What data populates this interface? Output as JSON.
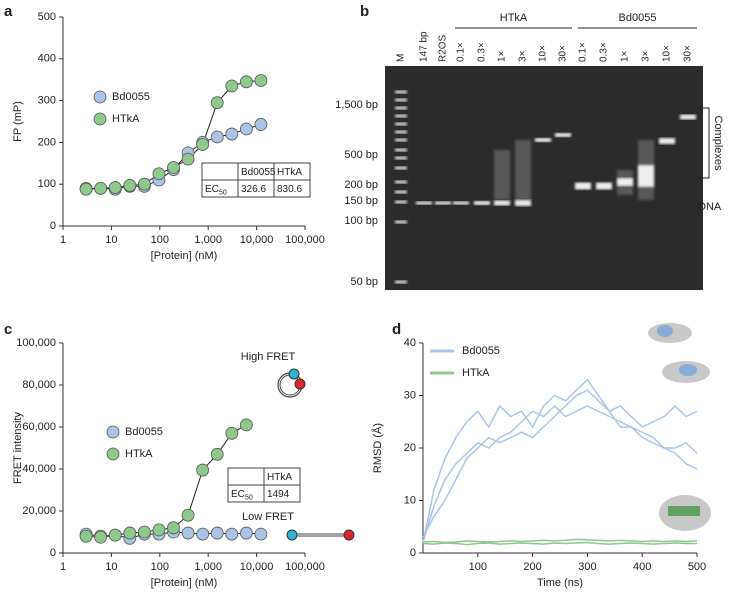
{
  "panel_labels": [
    "a",
    "b",
    "c",
    "d"
  ],
  "chart_data": [
    {
      "type": "line",
      "xlabel": "[Protein] (nM)",
      "ylabel": "FP (mP)",
      "xscale": "log",
      "markers": true,
      "fit_line": true,
      "x": [
        3,
        6,
        12,
        24,
        48,
        96,
        192,
        384,
        768,
        1536,
        3072,
        6144,
        12288
      ],
      "xlim": [
        1,
        100000
      ],
      "xticks": [
        1,
        10,
        100,
        {
          "value": 1000,
          "label": "1,000"
        },
        {
          "value": 10000,
          "label": "10,000"
        },
        {
          "value": 100000,
          "label": "100,000"
        }
      ],
      "ylim": [
        0,
        500
      ],
      "yticks": [
        0,
        100,
        200,
        300,
        400,
        500
      ],
      "series": [
        {
          "name": "Bd0055",
          "color": "#a9c4e6",
          "values": [
            90,
            90,
            88,
            95,
            95,
            110,
            135,
            175,
            200,
            213,
            220,
            232,
            243
          ]
        },
        {
          "name": "HTkA",
          "color": "#8cc98a",
          "values": [
            88,
            90,
            92,
            97,
            100,
            125,
            140,
            160,
            195,
            295,
            335,
            345,
            348
          ]
        }
      ],
      "table": {
        "header": [
          "Bd0055",
          "HTkA"
        ],
        "row_label": "EC",
        "row_label_sub": "50",
        "values": [
          326.6,
          830.6
        ]
      }
    },
    {
      "type": "line",
      "xlabel": "[Protein] (nM)",
      "ylabel": "FRET intensity",
      "xscale": "log",
      "markers": true,
      "fit_line": true,
      "x": [
        3,
        6,
        12,
        24,
        48,
        96,
        192,
        384,
        768,
        1536,
        3072,
        6144,
        12288
      ],
      "xlim": [
        1,
        100000
      ],
      "xticks": [
        1,
        10,
        100,
        {
          "value": 1000,
          "label": "1,000"
        },
        {
          "value": 10000,
          "label": "10,000"
        },
        {
          "value": 100000,
          "label": "100,000"
        }
      ],
      "ylim": [
        0,
        100000
      ],
      "yticks": [
        0,
        {
          "value": 20000,
          "label": "20,000"
        },
        {
          "value": 40000,
          "label": "40,000"
        },
        {
          "value": 60000,
          "label": "60,000"
        },
        {
          "value": 80000,
          "label": "80,000"
        },
        {
          "value": 100000,
          "label": "100,000"
        }
      ],
      "series": [
        {
          "name": "Bd0055",
          "color": "#a9c4e6",
          "values": [
            9000,
            8000,
            8500,
            7000,
            9000,
            9000,
            10000,
            9500,
            9000,
            9500,
            9000,
            9500,
            9000
          ]
        },
        {
          "name": "HTkA",
          "color": "#8cc98a",
          "values": [
            8000,
            7500,
            8500,
            9500,
            10000,
            11000,
            12000,
            18000,
            39500,
            47000,
            57000,
            61000,
            null
          ]
        }
      ],
      "table": {
        "header": [
          "HTkA"
        ],
        "row_label": "EC",
        "row_label_sub": "50",
        "values": [
          1494
        ]
      },
      "annotations": [
        "High FRET",
        "Low FRET"
      ]
    },
    {
      "type": "line",
      "xlabel": "Time (ns)",
      "ylabel": "RMSD (Å)",
      "markers": false,
      "fit_line": false,
      "x": [
        0,
        20,
        40,
        60,
        80,
        100,
        120,
        140,
        160,
        180,
        200,
        220,
        240,
        260,
        280,
        300,
        320,
        340,
        360,
        380,
        400,
        420,
        440,
        460,
        480,
        500
      ],
      "xlim": [
        0,
        500
      ],
      "xticks": [
        100,
        200,
        300,
        400,
        500
      ],
      "ylim": [
        0,
        40
      ],
      "yticks": [
        0,
        10,
        20,
        30,
        40
      ],
      "series": [
        {
          "name": "Bd0055",
          "color": "#a9c4e6",
          "values": [
            2,
            12,
            18,
            22,
            25,
            27,
            24,
            28,
            26,
            27,
            24,
            28,
            30,
            29,
            31,
            33,
            30,
            27,
            28,
            26,
            24,
            25,
            26,
            28,
            26,
            27
          ]
        },
        {
          "color": "#a9c4e6",
          "values": [
            3,
            7,
            10,
            14,
            18,
            20,
            22,
            21,
            22,
            23,
            22,
            24,
            26,
            28,
            30,
            31,
            29,
            27,
            24,
            24,
            22,
            21,
            20,
            20,
            21,
            19
          ]
        },
        {
          "color": "#a9c4e6",
          "values": [
            2,
            9,
            14,
            17,
            19,
            21,
            20,
            22,
            23,
            25,
            27,
            26,
            28,
            26,
            27,
            28,
            27,
            26,
            25,
            24,
            23,
            22,
            20,
            19,
            17,
            16
          ]
        },
        {
          "name": "HTkA",
          "color": "#8cc98a",
          "values": [
            1.8,
            1.7,
            1.9,
            1.8,
            1.6,
            1.8,
            1.9,
            1.7,
            1.8,
            1.9,
            1.8,
            1.7,
            1.9,
            1.8,
            1.9,
            2,
            1.8,
            1.7,
            1.8,
            1.9,
            1.8,
            1.7,
            1.8,
            1.9,
            1.8,
            1.8
          ]
        },
        {
          "color": "#8cc98a",
          "values": [
            2.1,
            2.2,
            2,
            2.1,
            2.3,
            2.2,
            2.1,
            2.2,
            2.3,
            2.2,
            2.3,
            2.4,
            2.3,
            2.4,
            2.6,
            2.5,
            2.4,
            2.3,
            2.4,
            2.3,
            2.2,
            2.3,
            2.2,
            2.3,
            2.2,
            2.3
          ]
        }
      ]
    }
  ],
  "gel": {
    "lanes": [
      "M",
      "147 bp",
      "R2OS",
      "0.1×",
      "0.3×",
      "1×",
      "3×",
      "10×",
      "30×",
      "0.1×",
      "0.3×",
      "1×",
      "3×",
      "10×",
      "30×"
    ],
    "groups": [
      "HTkA",
      "Bd0055"
    ],
    "sizes": [
      "1,500 bp",
      "500 bp",
      "200 bp",
      "150 bp",
      "100 bp",
      "50 bp"
    ],
    "complexes": "Complexes",
    "dna": "DNA"
  }
}
